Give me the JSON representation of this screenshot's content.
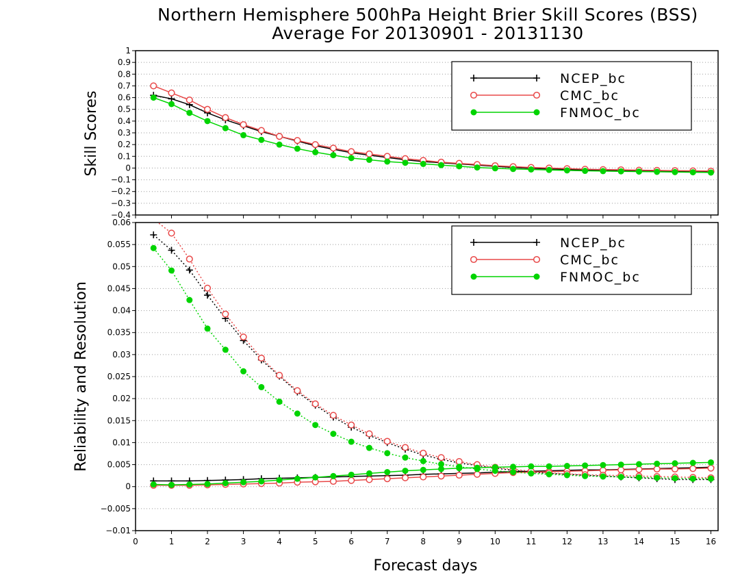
{
  "title_line1": "Northern Hemisphere 500hPa Height Brier Skill Scores (BSS)",
  "title_line2": "Average For 20130901 - 20131130",
  "colors": {
    "NCEP_bc": "#000000",
    "CMC_bc": "#e84848",
    "FNMOC_bc": "#00d400"
  },
  "chart_data": [
    {
      "type": "line",
      "ylabel": "Skill Scores",
      "xlim": [
        0,
        16.2
      ],
      "ylim": [
        -0.4,
        1
      ],
      "x_ticks": [
        "0",
        "1",
        "2",
        "3",
        "4",
        "5",
        "6",
        "7",
        "8",
        "9",
        "10",
        "11",
        "12",
        "13",
        "14",
        "15",
        "16"
      ],
      "y_ticks": [
        "−0.4",
        "−0.3",
        "−0.2",
        "−0.1",
        "0",
        "0.1",
        "0.2",
        "0.3",
        "0.4",
        "0.5",
        "0.6",
        "0.7",
        "0.8",
        "0.9",
        "1"
      ],
      "grid": true,
      "legend_position": "top-right",
      "x": [
        0.5,
        1,
        1.5,
        2,
        2.5,
        3,
        3.5,
        4,
        4.5,
        5,
        5.5,
        6,
        6.5,
        7,
        7.5,
        8,
        8.5,
        9,
        9.5,
        10,
        10.5,
        11,
        11.5,
        12,
        12.5,
        13,
        13.5,
        14,
        14.5,
        15,
        15.5,
        16
      ],
      "series": [
        {
          "name": "NCEP_bc",
          "marker": "plus",
          "style": "solid",
          "values": [
            0.62,
            0.59,
            0.54,
            0.47,
            0.41,
            0.36,
            0.31,
            0.27,
            0.23,
            0.19,
            0.16,
            0.13,
            0.11,
            0.09,
            0.07,
            0.055,
            0.045,
            0.035,
            0.025,
            0.015,
            0.005,
            -0.002,
            -0.008,
            -0.012,
            -0.016,
            -0.02,
            -0.022,
            -0.025,
            -0.028,
            -0.03,
            -0.032,
            -0.034
          ]
        },
        {
          "name": "CMC_bc",
          "marker": "circle",
          "style": "solid",
          "values": [
            0.7,
            0.64,
            0.58,
            0.5,
            0.43,
            0.37,
            0.32,
            0.27,
            0.235,
            0.2,
            0.17,
            0.14,
            0.12,
            0.1,
            0.08,
            0.065,
            0.05,
            0.04,
            0.03,
            0.02,
            0.012,
            0.005,
            0.0,
            -0.005,
            -0.01,
            -0.013,
            -0.015,
            -0.018,
            -0.02,
            -0.022,
            -0.024,
            -0.026
          ]
        },
        {
          "name": "FNMOC_bc",
          "marker": "dot",
          "style": "solid",
          "values": [
            0.6,
            0.545,
            0.47,
            0.4,
            0.34,
            0.28,
            0.24,
            0.2,
            0.165,
            0.135,
            0.11,
            0.085,
            0.07,
            0.055,
            0.045,
            0.035,
            0.025,
            0.015,
            0.005,
            -0.002,
            -0.008,
            -0.012,
            -0.016,
            -0.02,
            -0.024,
            -0.026,
            -0.028,
            -0.03,
            -0.032,
            -0.034,
            -0.036,
            -0.038
          ]
        }
      ]
    },
    {
      "type": "line",
      "ylabel": "Reliability and Resolution",
      "xlabel": "Forecast days",
      "xlim": [
        0,
        16.2
      ],
      "ylim": [
        -0.01,
        0.06
      ],
      "x_ticks": [
        "0",
        "1",
        "2",
        "3",
        "4",
        "5",
        "6",
        "7",
        "8",
        "9",
        "10",
        "11",
        "12",
        "13",
        "14",
        "15",
        "16"
      ],
      "y_ticks": [
        "−0.01",
        "−0.005",
        "0",
        "0.005",
        "0.01",
        "0.015",
        "0.02",
        "0.025",
        "0.03",
        "0.035",
        "0.04",
        "0.045",
        "0.05",
        "0.055",
        "0.06"
      ],
      "grid": true,
      "legend_position": "top-right",
      "x": [
        0.5,
        1,
        1.5,
        2,
        2.5,
        3,
        3.5,
        4,
        4.5,
        5,
        5.5,
        6,
        6.5,
        7,
        7.5,
        8,
        8.5,
        9,
        9.5,
        10,
        10.5,
        11,
        11.5,
        12,
        12.5,
        13,
        13.5,
        14,
        14.5,
        15,
        15.5,
        16
      ],
      "series": [
        {
          "name": "NCEP_bc",
          "marker": "plus",
          "style": "solid",
          "metric": "Reliability",
          "values": [
            0.0013,
            0.0013,
            0.0013,
            0.0014,
            0.0015,
            0.0016,
            0.0018,
            0.0019,
            0.002,
            0.0021,
            0.0022,
            0.0023,
            0.0024,
            0.0025,
            0.0026,
            0.0028,
            0.0029,
            0.003,
            0.0031,
            0.0033,
            0.0034,
            0.0035,
            0.0036,
            0.0037,
            0.0038,
            0.0038,
            0.0039,
            0.004,
            0.0041,
            0.0042,
            0.0043,
            0.0044
          ]
        },
        {
          "name": "NCEP_bc",
          "marker": "plus",
          "style": "dotted",
          "metric": "Resolution",
          "values": [
            0.0572,
            0.0537,
            0.0492,
            0.0435,
            0.0382,
            0.0332,
            0.0288,
            0.0251,
            0.0215,
            0.0185,
            0.0158,
            0.0135,
            0.0116,
            0.01,
            0.0085,
            0.0072,
            0.0062,
            0.0054,
            0.0048,
            0.0042,
            0.0037,
            0.0033,
            0.003,
            0.0028,
            0.0026,
            0.0024,
            0.0022,
            0.002,
            0.0018,
            0.0016,
            0.0016,
            0.0016
          ]
        },
        {
          "name": "CMC_bc",
          "marker": "circle",
          "style": "solid",
          "metric": "Reliability",
          "values": [
            0.0003,
            0.0003,
            0.0003,
            0.0004,
            0.0005,
            0.0006,
            0.0007,
            0.0008,
            0.001,
            0.0011,
            0.0012,
            0.0014,
            0.0016,
            0.0018,
            0.002,
            0.0022,
            0.0024,
            0.0026,
            0.0028,
            0.003,
            0.0032,
            0.0033,
            0.0034,
            0.0035,
            0.0036,
            0.0037,
            0.0038,
            0.0039,
            0.004,
            0.004,
            0.0041,
            0.0042
          ]
        },
        {
          "name": "CMC_bc",
          "marker": "circle",
          "style": "dotted",
          "metric": "Resolution",
          "values": [
            0.0608,
            0.0576,
            0.0517,
            0.0451,
            0.0392,
            0.034,
            0.0292,
            0.0253,
            0.0218,
            0.0188,
            0.0162,
            0.014,
            0.012,
            0.0103,
            0.0089,
            0.0076,
            0.0066,
            0.0057,
            0.005,
            0.0044,
            0.0039,
            0.0035,
            0.0031,
            0.0029,
            0.0027,
            0.0026,
            0.0025,
            0.0024,
            0.0023,
            0.0022,
            0.0021,
            0.002
          ]
        },
        {
          "name": "FNMOC_bc",
          "marker": "dot",
          "style": "solid",
          "metric": "Reliability",
          "values": [
            0.0005,
            0.0004,
            0.0005,
            0.0006,
            0.0008,
            0.001,
            0.0012,
            0.0015,
            0.0018,
            0.0021,
            0.0024,
            0.0027,
            0.003,
            0.0033,
            0.0036,
            0.0038,
            0.004,
            0.0042,
            0.0043,
            0.0044,
            0.0045,
            0.0046,
            0.0046,
            0.0047,
            0.0048,
            0.0049,
            0.005,
            0.0051,
            0.0052,
            0.0053,
            0.0054,
            0.0055
          ]
        },
        {
          "name": "FNMOC_bc",
          "marker": "dot",
          "style": "dotted",
          "metric": "Resolution",
          "values": [
            0.0542,
            0.0491,
            0.0424,
            0.0359,
            0.0311,
            0.0262,
            0.0226,
            0.0193,
            0.0166,
            0.014,
            0.012,
            0.0102,
            0.0088,
            0.0076,
            0.0066,
            0.0058,
            0.0051,
            0.0045,
            0.004,
            0.0036,
            0.0033,
            0.003,
            0.0028,
            0.0026,
            0.0024,
            0.0023,
            0.0022,
            0.0021,
            0.002,
            0.0019,
            0.0018,
            0.0018
          ]
        }
      ]
    }
  ]
}
